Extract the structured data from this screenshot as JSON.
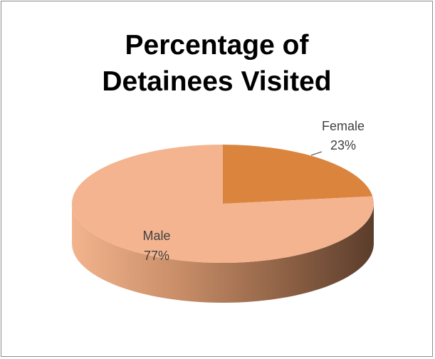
{
  "chart_data": {
    "type": "pie",
    "title_lines": [
      "Percentage of",
      "Detainees Visited"
    ],
    "slices": [
      {
        "label": "Male",
        "value": 77,
        "value_label": "77%",
        "color": "#F4B490"
      },
      {
        "label": "Female",
        "value": 23,
        "value_label": "23%",
        "color": "#DA843E"
      }
    ],
    "style": "3d"
  }
}
